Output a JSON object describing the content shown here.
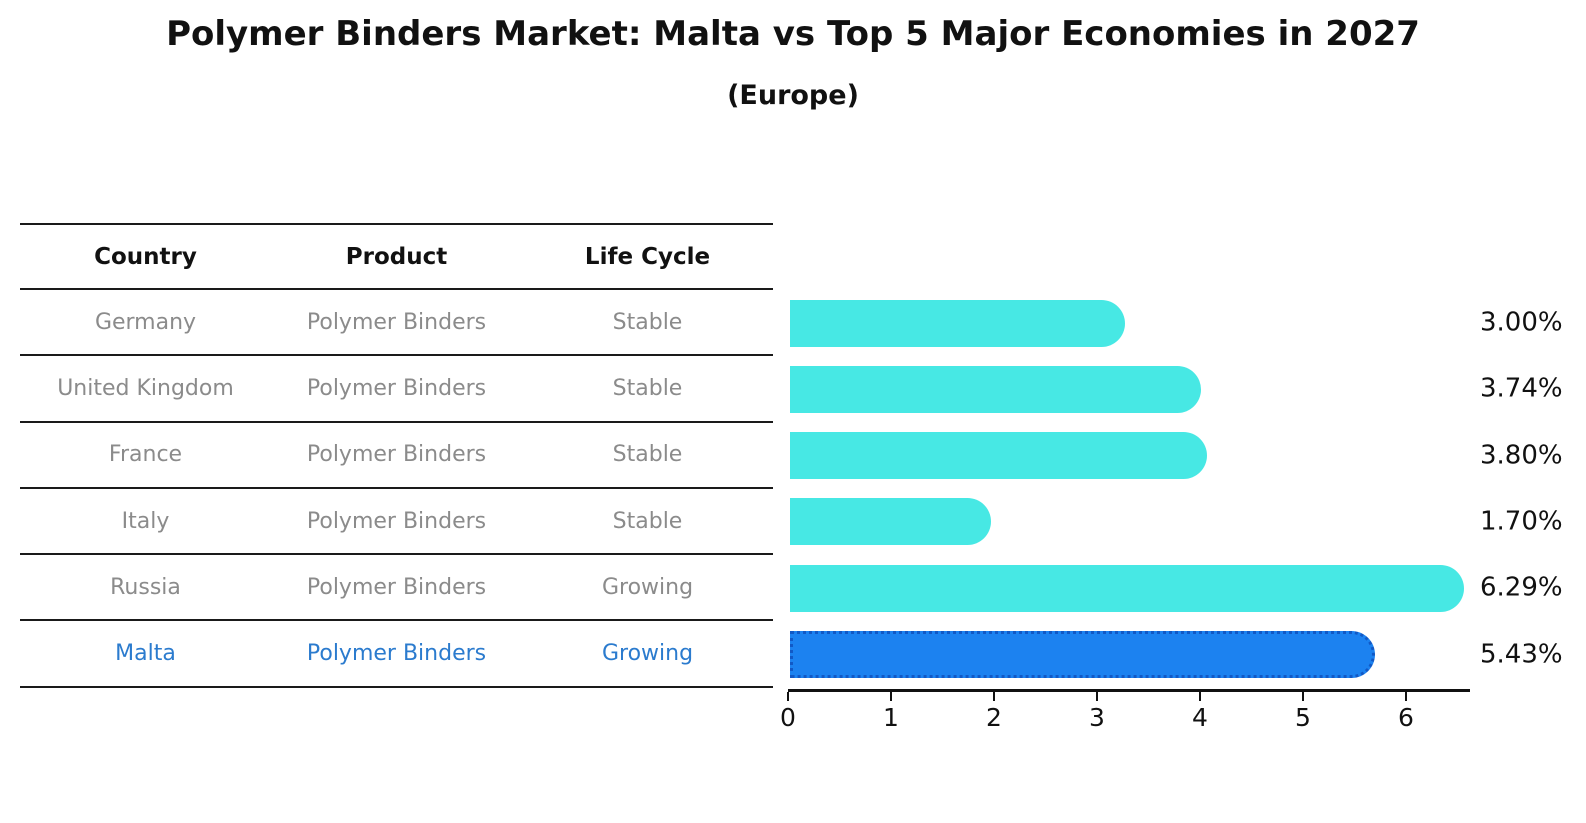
{
  "title": "Polymer Binders Market: Malta vs Top 5 Major Economies in 2027",
  "subtitle": "(Europe)",
  "table": {
    "headers": [
      "Country",
      "Product",
      "Life Cycle"
    ],
    "rows": [
      {
        "country": "Germany",
        "product": "Polymer Binders",
        "life_cycle": "Stable",
        "highlighted": false
      },
      {
        "country": "United Kingdom",
        "product": "Polymer Binders",
        "life_cycle": "Stable",
        "highlighted": false
      },
      {
        "country": "France",
        "product": "Polymer Binders",
        "life_cycle": "Stable",
        "highlighted": false
      },
      {
        "country": "Italy",
        "product": "Polymer Binders",
        "life_cycle": "Stable",
        "highlighted": false
      },
      {
        "country": "Russia",
        "product": "Polymer Binders",
        "life_cycle": "Growing",
        "highlighted": false
      },
      {
        "country": "Malta",
        "product": "Polymer Binders",
        "life_cycle": "Growing",
        "highlighted": true
      }
    ]
  },
  "chart_data": {
    "type": "bar",
    "orientation": "horizontal",
    "categories": [
      "Germany",
      "United Kingdom",
      "France",
      "Italy",
      "Russia",
      "Malta"
    ],
    "values": [
      3.0,
      3.74,
      3.8,
      1.7,
      6.29,
      5.43
    ],
    "value_labels": [
      "3.00%",
      "3.74%",
      "3.80%",
      "1.70%",
      "6.29%",
      "5.43%"
    ],
    "xticks": [
      0,
      1,
      2,
      3,
      4,
      5,
      6
    ],
    "xlim": [
      0,
      6.6
    ],
    "xlabel": "",
    "ylabel": "",
    "grid": false,
    "legend": null,
    "bar_color": "#47E8E4",
    "highlight_index": 5,
    "highlight_color": "#1C82F0",
    "highlight_border_color": "#1159C6",
    "highlight_text_color": "#2b7bce"
  }
}
